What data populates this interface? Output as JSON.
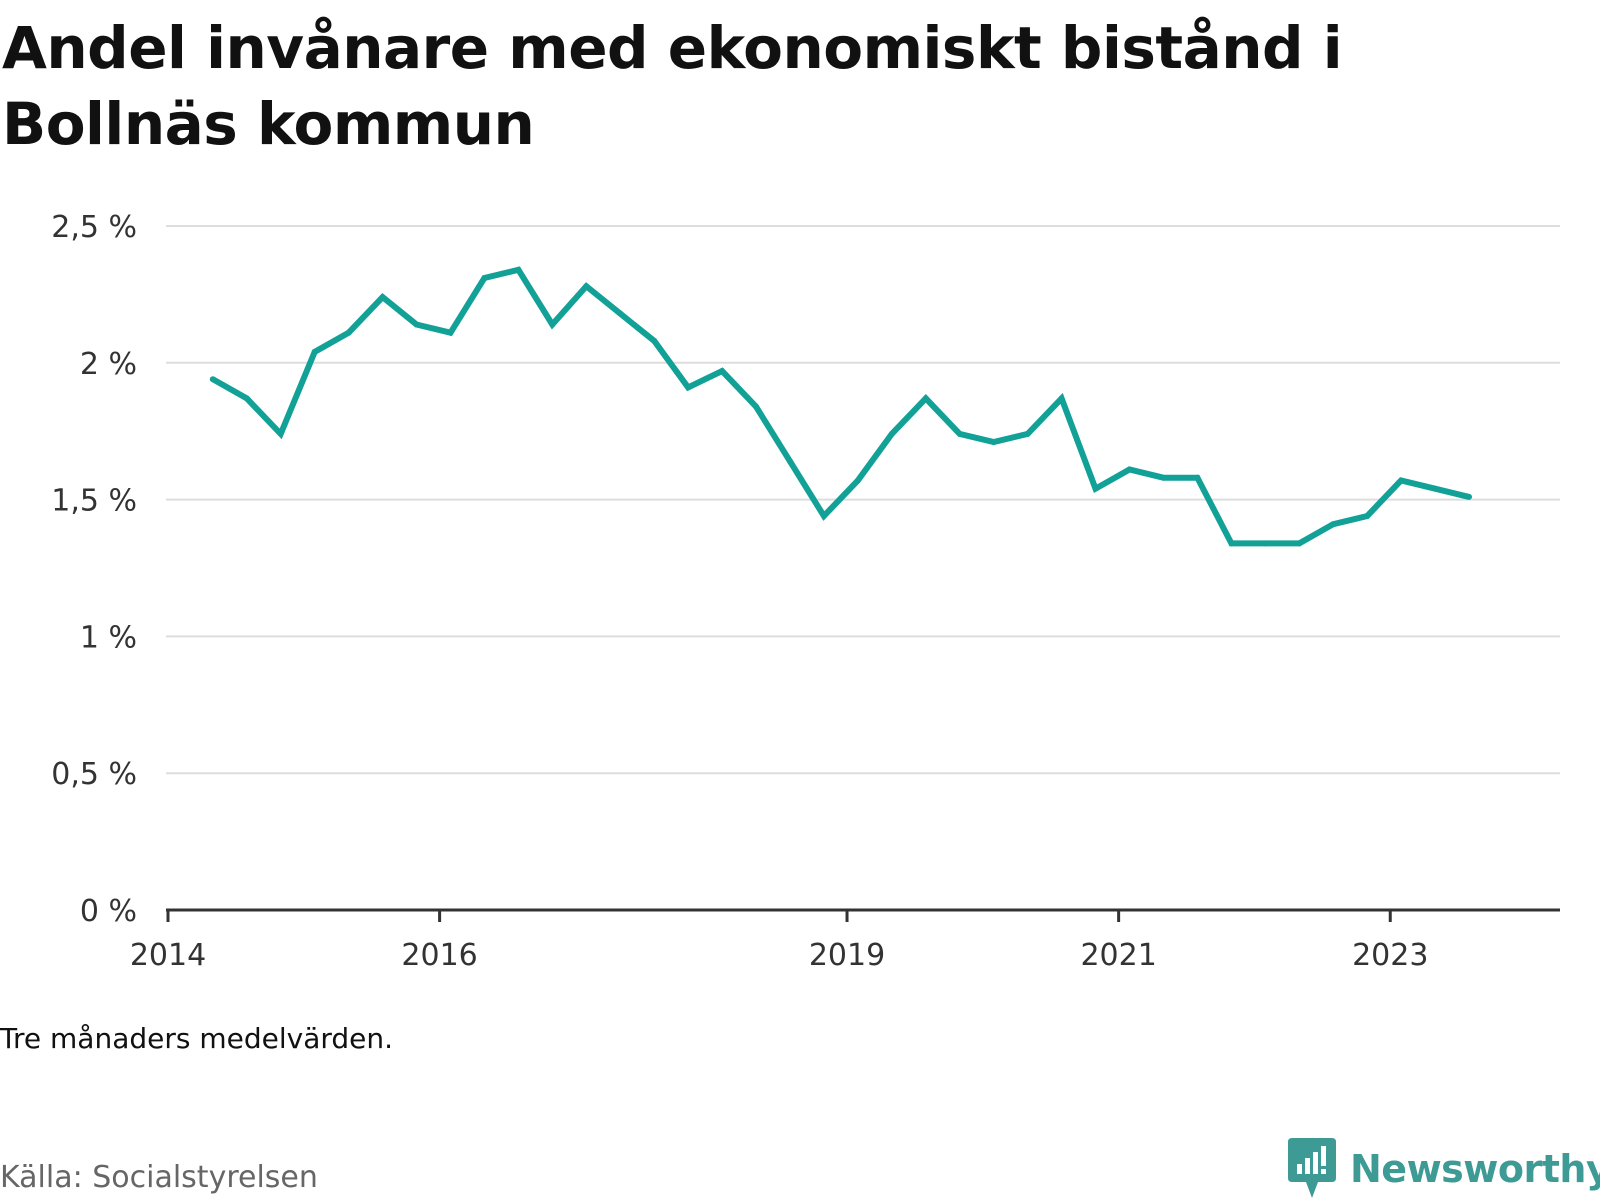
{
  "title": "Andel invånare med ekonomiskt bistånd i Bollnäs kommun",
  "note": "Tre månaders medelvärden.",
  "source": "Källa: Socialstyrelsen",
  "brand": {
    "name": "Newsworthy",
    "color": "#3d9a94"
  },
  "colors": {
    "line": "#12a197",
    "grid": "#dddddd",
    "axis": "#333333"
  },
  "chart_data": {
    "type": "line",
    "title": "Andel invånare med ekonomiskt bistånd i Bollnäs kommun",
    "xlabel": "",
    "ylabel": "",
    "ylim": [
      0,
      2.5
    ],
    "xlim": [
      2014.0,
      2024.25
    ],
    "grid": true,
    "y_ticks": [
      {
        "value": 0,
        "label": "0 %"
      },
      {
        "value": 0.5,
        "label": "0,5 %"
      },
      {
        "value": 1,
        "label": "1 %"
      },
      {
        "value": 1.5,
        "label": "1,5 %"
      },
      {
        "value": 2,
        "label": "2 %"
      },
      {
        "value": 2.5,
        "label": "2,5 %"
      }
    ],
    "x_ticks": [
      {
        "value": 2014,
        "label": "2014"
      },
      {
        "value": 2016,
        "label": "2016"
      },
      {
        "value": 2019,
        "label": "2019"
      },
      {
        "value": 2021,
        "label": "2021"
      },
      {
        "value": 2023,
        "label": "2023"
      }
    ],
    "series": [
      {
        "points": [
          {
            "x": 2014.33,
            "y": 1.94
          },
          {
            "x": 2014.58,
            "y": 1.87
          },
          {
            "x": 2014.83,
            "y": 1.74
          },
          {
            "x": 2015.08,
            "y": 2.04
          },
          {
            "x": 2015.33,
            "y": 2.11
          },
          {
            "x": 2015.58,
            "y": 2.24
          },
          {
            "x": 2015.83,
            "y": 2.14
          },
          {
            "x": 2016.08,
            "y": 2.11
          },
          {
            "x": 2016.33,
            "y": 2.31
          },
          {
            "x": 2016.58,
            "y": 2.34
          },
          {
            "x": 2016.83,
            "y": 2.14
          },
          {
            "x": 2017.08,
            "y": 2.28
          },
          {
            "x": 2017.33,
            "y": 2.18
          },
          {
            "x": 2017.58,
            "y": 2.08
          },
          {
            "x": 2017.83,
            "y": 1.91
          },
          {
            "x": 2018.08,
            "y": 1.97
          },
          {
            "x": 2018.33,
            "y": 1.84
          },
          {
            "x": 2018.58,
            "y": 1.64
          },
          {
            "x": 2018.83,
            "y": 1.44
          },
          {
            "x": 2019.08,
            "y": 1.57
          },
          {
            "x": 2019.33,
            "y": 1.74
          },
          {
            "x": 2019.58,
            "y": 1.87
          },
          {
            "x": 2019.83,
            "y": 1.74
          },
          {
            "x": 2020.08,
            "y": 1.71
          },
          {
            "x": 2020.33,
            "y": 1.74
          },
          {
            "x": 2020.58,
            "y": 1.87
          },
          {
            "x": 2020.83,
            "y": 1.54
          },
          {
            "x": 2021.08,
            "y": 1.61
          },
          {
            "x": 2021.33,
            "y": 1.58
          },
          {
            "x": 2021.58,
            "y": 1.58
          },
          {
            "x": 2021.83,
            "y": 1.34
          },
          {
            "x": 2022.08,
            "y": 1.34
          },
          {
            "x": 2022.33,
            "y": 1.34
          },
          {
            "x": 2022.58,
            "y": 1.41
          },
          {
            "x": 2022.83,
            "y": 1.44
          },
          {
            "x": 2023.08,
            "y": 1.57
          },
          {
            "x": 2023.33,
            "y": 1.54
          },
          {
            "x": 2023.58,
            "y": 1.51
          }
        ]
      }
    ]
  }
}
